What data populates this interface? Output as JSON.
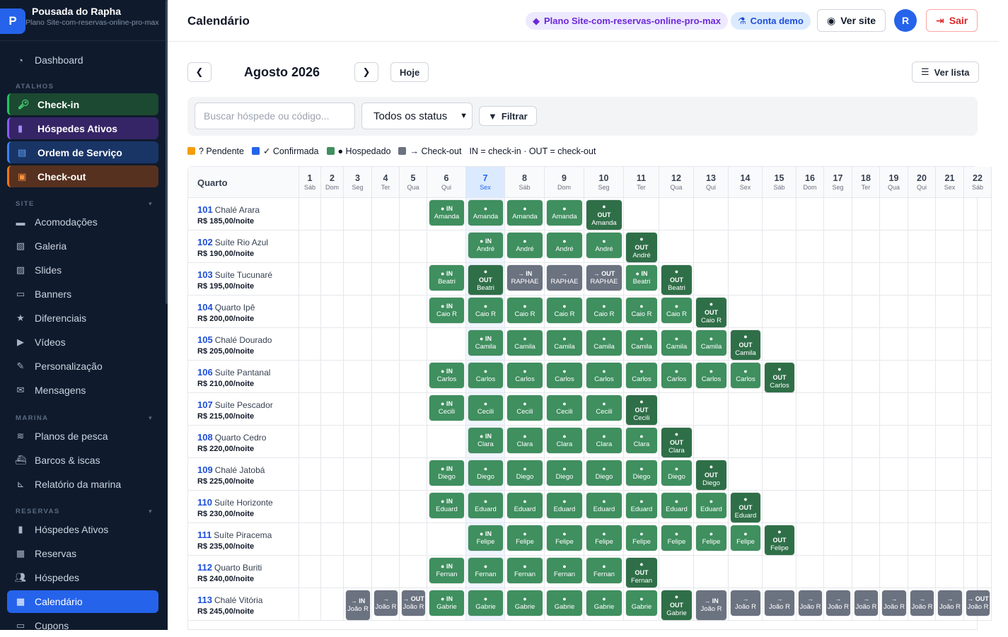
{
  "brand": {
    "name": "Pousada do Rapha",
    "plan": "Plano Site-com-reservas-online-pro-max",
    "logo_letter": "P"
  },
  "sidebar": {
    "dashboard": "Dashboard",
    "atalhos_label": "ATALHOS",
    "shortcuts": [
      "Check-in",
      "Hóspedes Ativos",
      "Ordem de Serviço",
      "Check-out"
    ],
    "site_label": "SITE",
    "site_items": [
      "Acomodações",
      "Galeria",
      "Slides",
      "Banners",
      "Diferenciais",
      "Vídeos",
      "Personalização",
      "Mensagens"
    ],
    "marina_label": "MARINA",
    "marina_items": [
      "Planos de pesca",
      "Barcos & iscas",
      "Relatório da marina"
    ],
    "reservas_label": "RESERVAS",
    "reservas_items": [
      "Hóspedes Ativos",
      "Reservas",
      "Hóspedes",
      "Calendário",
      "Cupons"
    ]
  },
  "header": {
    "title": "Calendário",
    "plan_pill": "Plano Site-com-reservas-online-pro-max",
    "demo_pill": "Conta demo",
    "ver_site": "Ver site",
    "avatar": "R",
    "sair": "Sair"
  },
  "calendar": {
    "month": "Agosto 2026",
    "hoje": "Hoje",
    "ver_lista": "Ver lista",
    "search_placeholder": "Buscar hóspede ou código...",
    "status_value": "Todos os status",
    "filtrar": "Filtrar",
    "legend": {
      "pendente": "? Pendente",
      "confirmada": "✓ Confirmada",
      "hospedado": "● Hospedado",
      "checkout": "→ Check-out",
      "note": "IN = check-in · OUT = check-out"
    },
    "quarto_header": "Quarto",
    "today": 7,
    "days": [
      {
        "n": "1",
        "w": "Sáb"
      },
      {
        "n": "2",
        "w": "Dom"
      },
      {
        "n": "3",
        "w": "Seg"
      },
      {
        "n": "4",
        "w": "Ter"
      },
      {
        "n": "5",
        "w": "Qua"
      },
      {
        "n": "6",
        "w": "Qui"
      },
      {
        "n": "7",
        "w": "Sex"
      },
      {
        "n": "8",
        "w": "Sáb"
      },
      {
        "n": "9",
        "w": "Dom"
      },
      {
        "n": "10",
        "w": "Seg"
      },
      {
        "n": "11",
        "w": "Ter"
      },
      {
        "n": "12",
        "w": "Qua"
      },
      {
        "n": "13",
        "w": "Qui"
      },
      {
        "n": "14",
        "w": "Sex"
      },
      {
        "n": "15",
        "w": "Sáb"
      },
      {
        "n": "16",
        "w": "Dom"
      },
      {
        "n": "17",
        "w": "Seg"
      },
      {
        "n": "18",
        "w": "Ter"
      },
      {
        "n": "19",
        "w": "Qua"
      },
      {
        "n": "20",
        "w": "Qui"
      },
      {
        "n": "21",
        "w": "Sex"
      },
      {
        "n": "22",
        "w": "Sáb"
      }
    ],
    "rooms": [
      {
        "num": "101",
        "name": "Chalé Arara",
        "price": "R$ 185,00/noite",
        "bookings": [
          {
            "guest": "Amanda",
            "start": 6,
            "end": 10,
            "type": "hosp"
          }
        ]
      },
      {
        "num": "102",
        "name": "Suíte Rio Azul",
        "price": "R$ 190,00/noite",
        "bookings": [
          {
            "guest": "André",
            "start": 7,
            "end": 11,
            "type": "hosp"
          }
        ]
      },
      {
        "num": "103",
        "name": "Suíte Tucunaré",
        "price": "R$ 195,00/noite",
        "bookings": [
          {
            "guest": "Beatri",
            "start": 6,
            "end": 7,
            "type": "hosp"
          },
          {
            "guest": "RAPHAE",
            "start": 8,
            "end": 10,
            "type": "chk"
          },
          {
            "guest": "Beatri",
            "start": 11,
            "end": 12,
            "type": "hosp"
          }
        ]
      },
      {
        "num": "104",
        "name": "Quarto Ipê",
        "price": "R$ 200,00/noite",
        "bookings": [
          {
            "guest": "Caio R",
            "start": 6,
            "end": 13,
            "type": "hosp"
          }
        ]
      },
      {
        "num": "105",
        "name": "Chalé Dourado",
        "price": "R$ 205,00/noite",
        "bookings": [
          {
            "guest": "Camila",
            "start": 7,
            "end": 14,
            "type": "hosp"
          }
        ]
      },
      {
        "num": "106",
        "name": "Suíte Pantanal",
        "price": "R$ 210,00/noite",
        "bookings": [
          {
            "guest": "Carlos",
            "start": 6,
            "end": 15,
            "type": "hosp"
          }
        ]
      },
      {
        "num": "107",
        "name": "Suíte Pescador",
        "price": "R$ 215,00/noite",
        "bookings": [
          {
            "guest": "Cecili",
            "start": 6,
            "end": 11,
            "type": "hosp"
          }
        ]
      },
      {
        "num": "108",
        "name": "Quarto Cedro",
        "price": "R$ 220,00/noite",
        "bookings": [
          {
            "guest": "Clara",
            "start": 7,
            "end": 12,
            "type": "hosp"
          }
        ]
      },
      {
        "num": "109",
        "name": "Chalé Jatobá",
        "price": "R$ 225,00/noite",
        "bookings": [
          {
            "guest": "Diego",
            "start": 6,
            "end": 13,
            "type": "hosp"
          }
        ]
      },
      {
        "num": "110",
        "name": "Suíte Horizonte",
        "price": "R$ 230,00/noite",
        "bookings": [
          {
            "guest": "Eduard",
            "start": 6,
            "end": 14,
            "type": "hosp"
          }
        ]
      },
      {
        "num": "111",
        "name": "Suíte Piracema",
        "price": "R$ 235,00/noite",
        "bookings": [
          {
            "guest": "Felipe",
            "start": 7,
            "end": 15,
            "type": "hosp"
          }
        ]
      },
      {
        "num": "112",
        "name": "Quarto Buriti",
        "price": "R$ 240,00/noite",
        "bookings": [
          {
            "guest": "Fernan",
            "start": 6,
            "end": 11,
            "type": "hosp"
          }
        ]
      },
      {
        "num": "113",
        "name": "Chalé Vitória",
        "price": "R$ 245,00/noite",
        "bookings": [
          {
            "guest": "João R",
            "start": 3,
            "end": 5,
            "type": "chk"
          },
          {
            "guest": "Gabrie",
            "start": 6,
            "end": 12,
            "type": "hosp"
          },
          {
            "guest": "João R",
            "start": 13,
            "end": 22,
            "type": "chk"
          }
        ]
      }
    ]
  },
  "colors": {
    "hospedado": "#3f8f5f",
    "checkout": "#6b7280",
    "pendente": "#f59e0b",
    "confirmada": "#2563eb",
    "accent": "#2563eb"
  }
}
